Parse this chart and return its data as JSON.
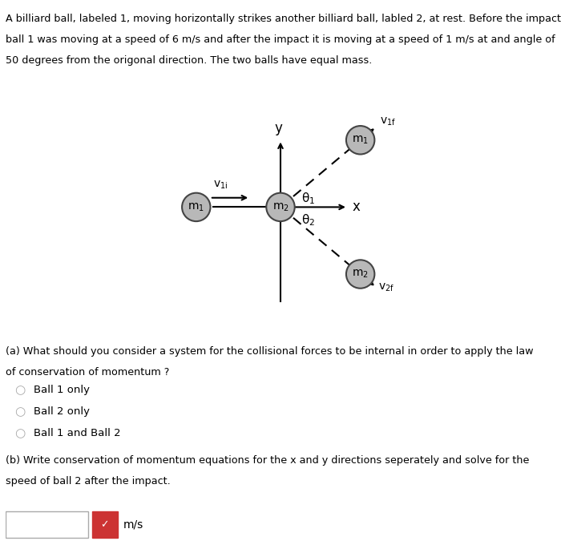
{
  "title_text": "A billiard ball, labeled 1, moving horizontally strikes another billiard ball, labled 2, at rest. Before the impact\nball 1 was moving at a speed of 6 m/s and after the impact it is moving at a speed of 1 m/s at and angle of\n50 degrees from the origonal direction. The two balls have equal mass.",
  "question_a_bold": "(a) What should you consider a system for the collisional forces to be internal in order to apply the law",
  "question_a_normal": "of conservation of momentum ?",
  "options": [
    "Ball 1 only",
    "Ball 2 only",
    "Ball 1 and Ball 2"
  ],
  "question_b": "(b) Write conservation of momentum equations for the x and y directions seperately and solve for the\nspeed of ball 2 after the impact.",
  "bg_color": "#ffffff",
  "ball_color": "#b8b8b8",
  "ball_edge_color": "#444444",
  "axis_color": "#000000",
  "arrow_color": "#000000",
  "dashed_color": "#000000",
  "text_color": "#000000",
  "radio_color": "#aaaaaa",
  "input_box_color": "#ffffff",
  "input_box_border": "#aaaaaa",
  "checkmark_color": "#cc3333",
  "theta1_deg": 40,
  "theta2_deg": 40
}
